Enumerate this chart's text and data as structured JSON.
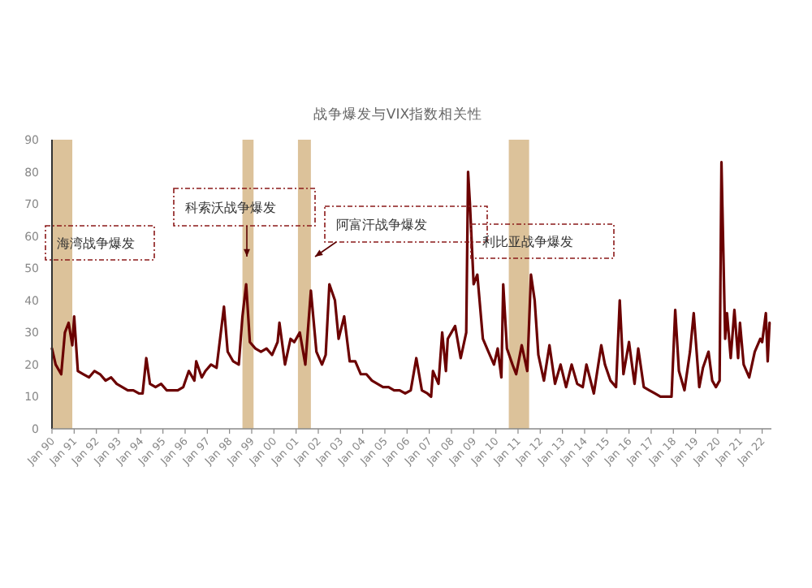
{
  "chart_data": {
    "type": "line",
    "title": "战争爆发与VIX指数相关性",
    "xlim": [
      "1990-01",
      "2022-06"
    ],
    "xticks": [
      {
        "value": "1990-01",
        "label": "Jan 90"
      },
      {
        "value": "1991-01",
        "label": "Jan 91"
      },
      {
        "value": "1992-01",
        "label": "Jan 92"
      },
      {
        "value": "1993-01",
        "label": "Jan 93"
      },
      {
        "value": "1994-01",
        "label": "Jan 94"
      },
      {
        "value": "1995-01",
        "label": "Jan 95"
      },
      {
        "value": "1996-01",
        "label": "Jan 96"
      },
      {
        "value": "1997-01",
        "label": "Jan 97"
      },
      {
        "value": "1998-01",
        "label": "Jan 98"
      },
      {
        "value": "1999-01",
        "label": "Jan 99"
      },
      {
        "value": "2000-01",
        "label": "Jan 00"
      },
      {
        "value": "2001-01",
        "label": "Jan 01"
      },
      {
        "value": "2002-01",
        "label": "Jan 02"
      },
      {
        "value": "2003-01",
        "label": "Jan 03"
      },
      {
        "value": "2004-01",
        "label": "Jan 04"
      },
      {
        "value": "2005-01",
        "label": "Jan 05"
      },
      {
        "value": "2006-01",
        "label": "Jan 06"
      },
      {
        "value": "2007-01",
        "label": "Jan 07"
      },
      {
        "value": "2008-01",
        "label": "Jan 08"
      },
      {
        "value": "2009-01",
        "label": "Jan 09"
      },
      {
        "value": "2010-01",
        "label": "Jan 10"
      },
      {
        "value": "2011-01",
        "label": "Jan 11"
      },
      {
        "value": "2012-01",
        "label": "Jan 12"
      },
      {
        "value": "2013-01",
        "label": "Jan 13"
      },
      {
        "value": "2014-01",
        "label": "Jan 14"
      },
      {
        "value": "2015-01",
        "label": "Jan 15"
      },
      {
        "value": "2016-01",
        "label": "Jan 16"
      },
      {
        "value": "2017-01",
        "label": "Jan 17"
      },
      {
        "value": "2018-01",
        "label": "Jan 18"
      },
      {
        "value": "2019-01",
        "label": "Jan 19"
      },
      {
        "value": "2020-01",
        "label": "Jan 20"
      },
      {
        "value": "2021-01",
        "label": "Jan 21"
      },
      {
        "value": "2022-01",
        "label": "Jan 22"
      }
    ],
    "ylim": [
      0,
      90
    ],
    "yticks": [
      0,
      10,
      20,
      30,
      40,
      50,
      60,
      70,
      80,
      90
    ],
    "bands": [
      {
        "axis": "x",
        "from": "1990-01",
        "to": "1990-12",
        "label": "海湾战争爆发",
        "color": "#dcc29a"
      },
      {
        "axis": "x",
        "from": "1998-08",
        "to": "1999-02",
        "label": "科索沃战争爆发",
        "color": "#dcc29a"
      },
      {
        "axis": "x",
        "from": "2001-02",
        "to": "2001-09",
        "label": "阿富汗战争爆发",
        "color": "#dcc29a"
      },
      {
        "axis": "x",
        "from": "2010-08",
        "to": "2011-07",
        "label": "利比亚战争爆发",
        "color": "#dcc29a"
      }
    ],
    "series": [
      {
        "color": "#6b0000",
        "x": [
          "1990-01",
          "1990-03",
          "1990-06",
          "1990-08",
          "1990-10",
          "1990-12",
          "1991-01",
          "1991-03",
          "1991-06",
          "1991-09",
          "1991-12",
          "1992-03",
          "1992-06",
          "1992-09",
          "1992-12",
          "1993-03",
          "1993-06",
          "1993-09",
          "1993-12",
          "1994-02",
          "1994-04",
          "1994-06",
          "1994-09",
          "1994-12",
          "1995-03",
          "1995-06",
          "1995-09",
          "1995-12",
          "1996-03",
          "1996-06",
          "1996-07",
          "1996-10",
          "1996-12",
          "1997-03",
          "1997-06",
          "1997-10",
          "1997-12",
          "1998-03",
          "1998-06",
          "1998-08",
          "1998-10",
          "1998-12",
          "1999-03",
          "1999-06",
          "1999-09",
          "1999-12",
          "2000-03",
          "2000-04",
          "2000-07",
          "2000-10",
          "2000-12",
          "2001-03",
          "2001-06",
          "2001-09",
          "2001-12",
          "2002-03",
          "2002-05",
          "2002-07",
          "2002-10",
          "2002-12",
          "2003-03",
          "2003-06",
          "2003-09",
          "2003-12",
          "2004-03",
          "2004-06",
          "2004-09",
          "2004-12",
          "2005-03",
          "2005-06",
          "2005-09",
          "2005-12",
          "2006-03",
          "2006-06",
          "2006-09",
          "2006-12",
          "2007-02",
          "2007-03",
          "2007-06",
          "2007-08",
          "2007-10",
          "2007-11",
          "2008-01",
          "2008-03",
          "2008-06",
          "2008-09",
          "2008-10",
          "2008-11",
          "2009-01",
          "2009-03",
          "2009-06",
          "2009-09",
          "2009-12",
          "2010-02",
          "2010-04",
          "2010-05",
          "2010-07",
          "2010-10",
          "2010-12",
          "2011-03",
          "2011-06",
          "2011-08",
          "2011-10",
          "2011-12",
          "2012-03",
          "2012-06",
          "2012-09",
          "2012-12",
          "2013-03",
          "2013-06",
          "2013-09",
          "2013-12",
          "2014-02",
          "2014-06",
          "2014-10",
          "2014-12",
          "2015-03",
          "2015-06",
          "2015-08",
          "2015-10",
          "2016-01",
          "2016-04",
          "2016-06",
          "2016-09",
          "2016-12",
          "2017-03",
          "2017-06",
          "2017-09",
          "2017-12",
          "2018-02",
          "2018-04",
          "2018-07",
          "2018-10",
          "2018-12",
          "2019-03",
          "2019-05",
          "2019-08",
          "2019-10",
          "2019-12",
          "2020-02",
          "2020-03",
          "2020-05",
          "2020-06",
          "2020-08",
          "2020-10",
          "2020-12",
          "2021-01",
          "2021-03",
          "2021-06",
          "2021-09",
          "2021-12",
          "2022-01",
          "2022-03",
          "2022-04",
          "2022-05"
        ],
        "values": [
          25,
          20,
          17,
          30,
          33,
          26,
          35,
          18,
          17,
          16,
          18,
          17,
          15,
          16,
          14,
          13,
          12,
          12,
          11,
          11,
          22,
          14,
          13,
          14,
          12,
          12,
          12,
          13,
          18,
          15,
          21,
          16,
          18,
          20,
          19,
          38,
          24,
          21,
          20,
          35,
          45,
          27,
          25,
          24,
          25,
          23,
          27,
          33,
          20,
          28,
          27,
          30,
          20,
          43,
          24,
          20,
          23,
          45,
          40,
          28,
          35,
          21,
          21,
          17,
          17,
          15,
          14,
          13,
          13,
          12,
          12,
          11,
          12,
          22,
          12,
          11,
          10,
          18,
          14,
          30,
          18,
          28,
          30,
          32,
          22,
          30,
          80,
          70,
          45,
          48,
          28,
          24,
          20,
          25,
          16,
          45,
          25,
          20,
          17,
          26,
          18,
          48,
          40,
          23,
          15,
          26,
          14,
          20,
          13,
          20,
          14,
          13,
          20,
          11,
          26,
          20,
          15,
          13,
          40,
          17,
          27,
          14,
          25,
          13,
          12,
          11,
          10,
          10,
          10,
          37,
          18,
          12,
          24,
          36,
          13,
          19,
          24,
          15,
          13,
          15,
          83,
          28,
          36,
          22,
          37,
          22,
          33,
          20,
          16,
          24,
          28,
          27,
          36,
          21,
          33
        ]
      }
    ]
  }
}
